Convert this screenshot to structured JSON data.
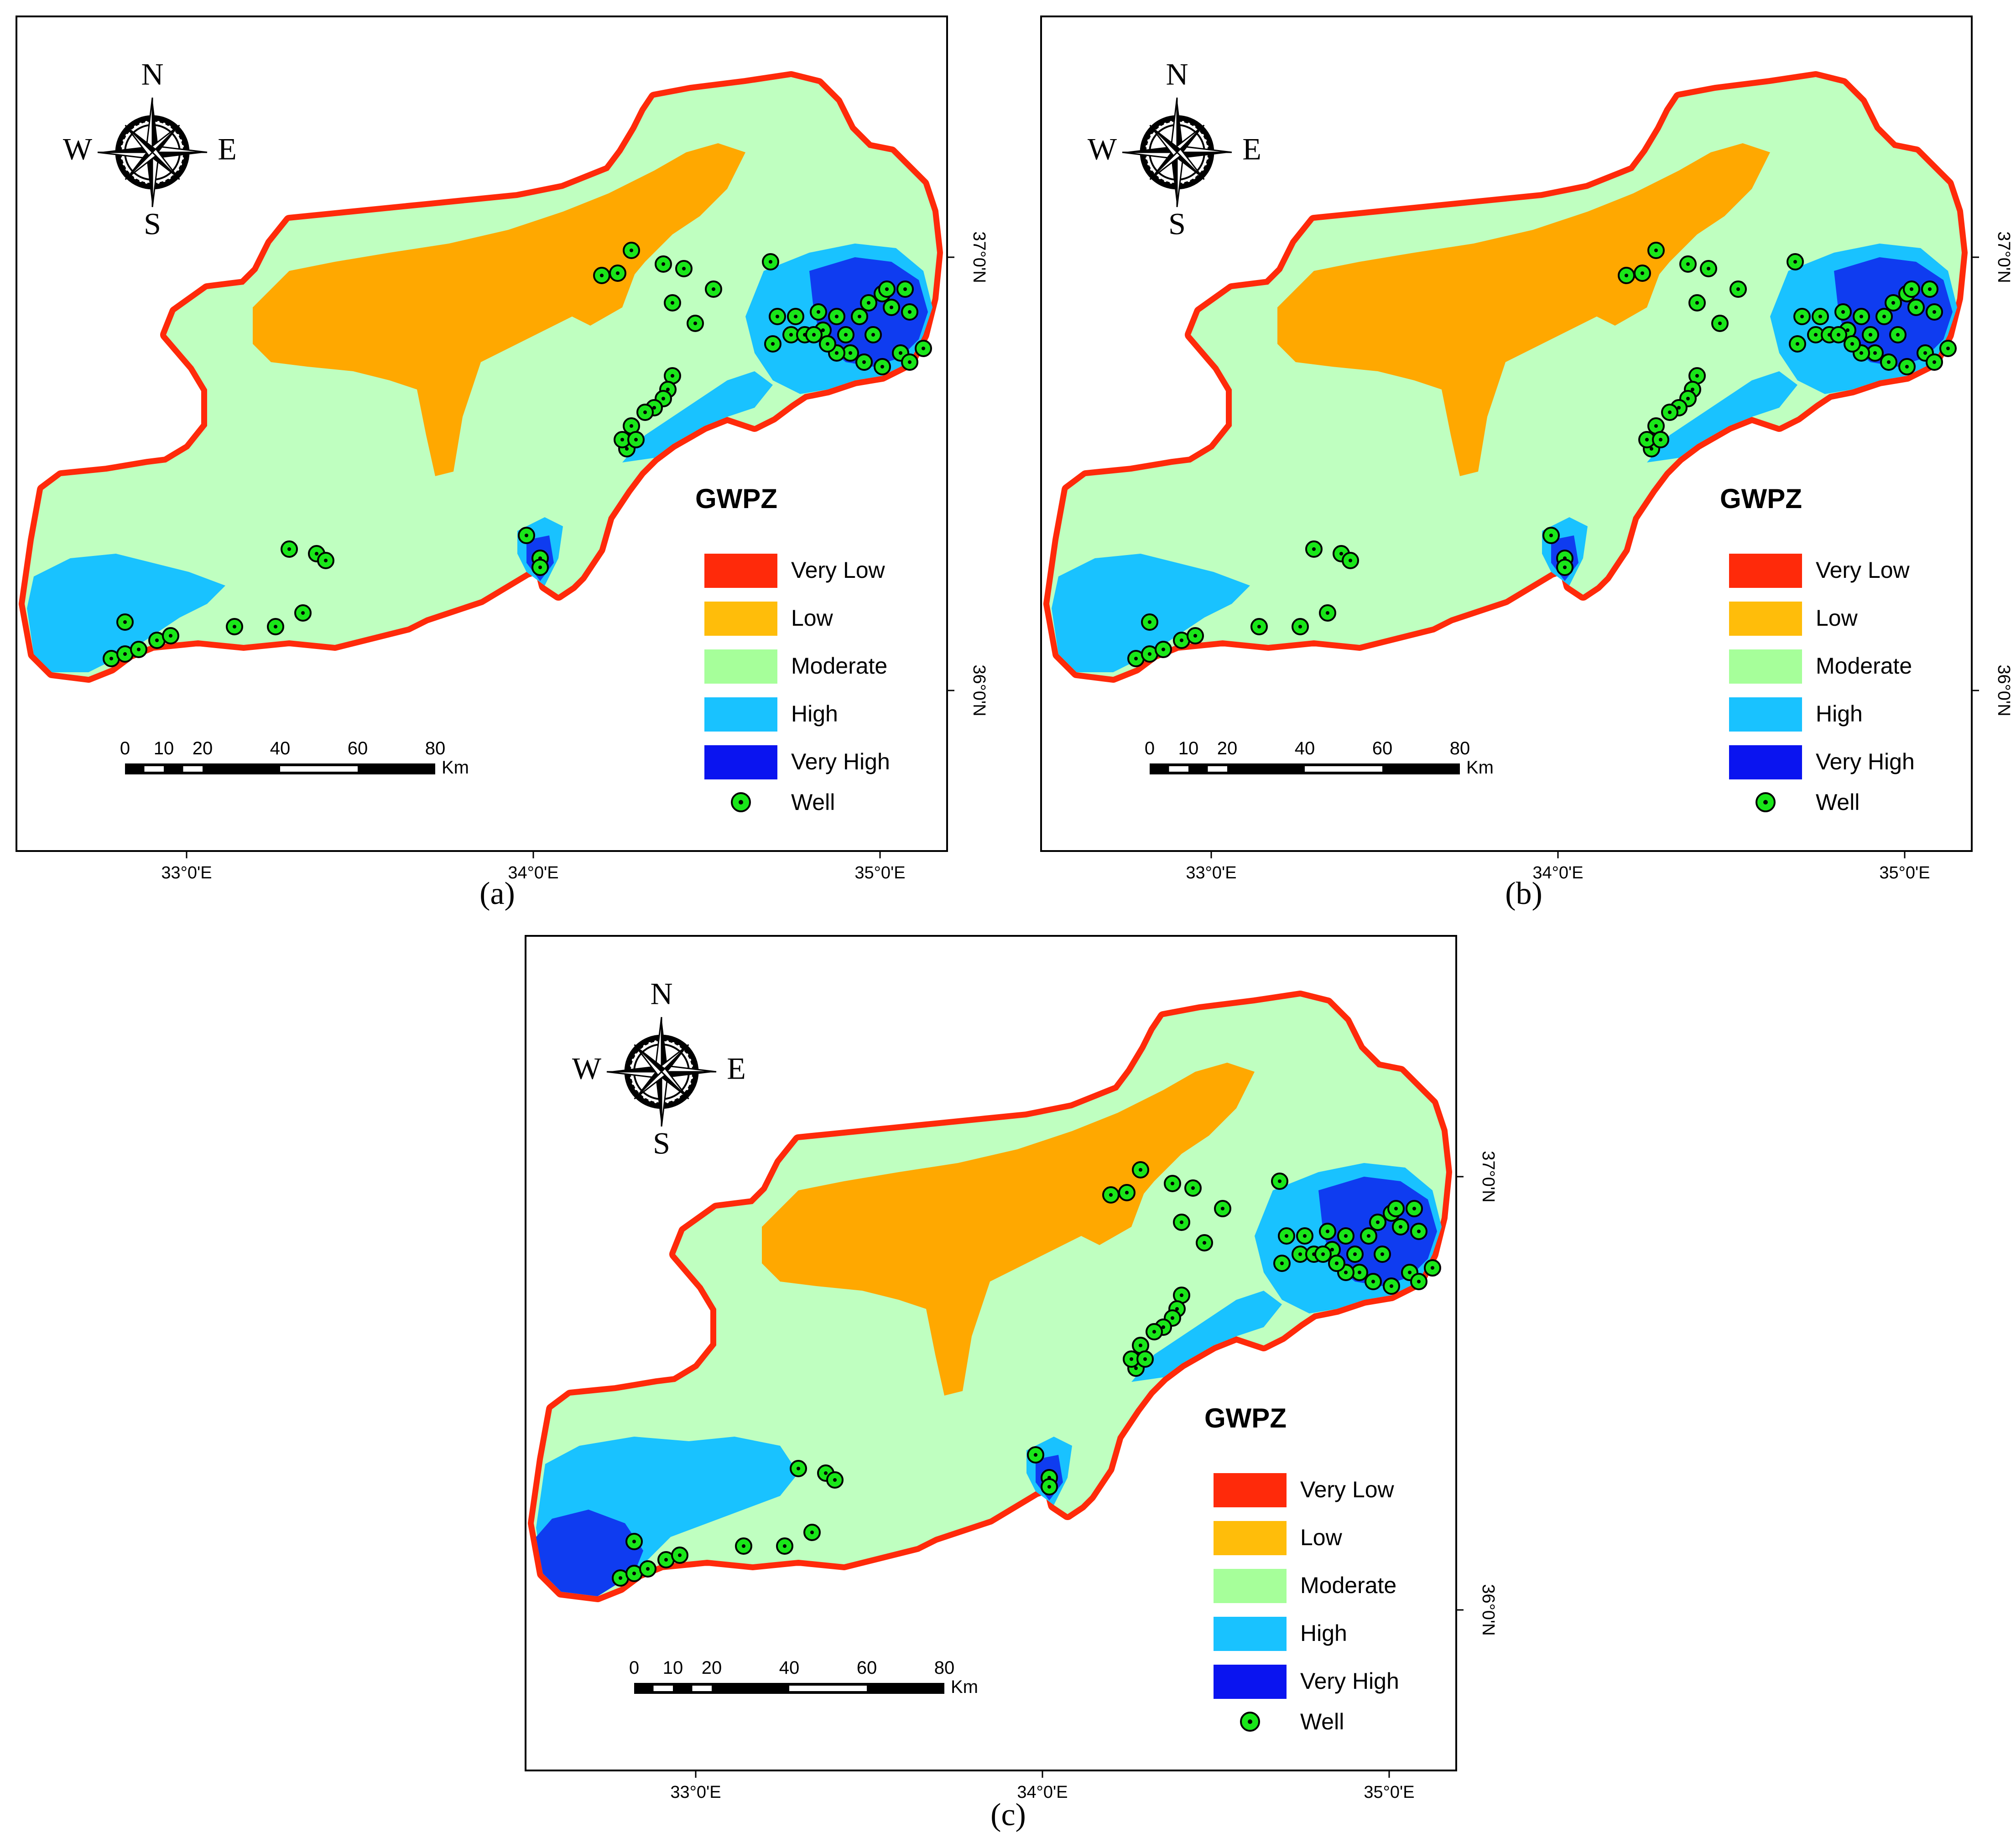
{
  "figure": {
    "panels": [
      {
        "id": "a",
        "caption": "(a)",
        "variant": "a",
        "legend": {
          "title": "GWPZ",
          "classes": [
            {
              "label": "Very Low",
              "color": "#ff2a0a"
            },
            {
              "label": "Low",
              "color": "#ffbd0a"
            },
            {
              "label": "Moderate",
              "color": "#a6ff9a"
            },
            {
              "label": "High",
              "color": "#19c2ff"
            },
            {
              "label": "Very High",
              "color": "#0a14f0"
            }
          ],
          "well_label": "Well"
        },
        "scale_bar": {
          "ticks": [
            "0",
            "10",
            "20",
            "40",
            "60",
            "80"
          ],
          "unit": "Km"
        },
        "compass": {
          "n": "N",
          "s": "S",
          "e": "E",
          "w": "W"
        },
        "x_axis_labels": [
          "33°0'E",
          "34°0'E",
          "35°0'E"
        ],
        "y_axis_labels": [
          "37°0'N",
          "36°0'N"
        ]
      },
      {
        "id": "b",
        "caption": "(b)",
        "variant": "b",
        "legend": {
          "title": "GWPZ",
          "classes": [
            {
              "label": "Very Low",
              "color": "#ff2a0a"
            },
            {
              "label": "Low",
              "color": "#ffbd0a"
            },
            {
              "label": "Moderate",
              "color": "#a6ff9a"
            },
            {
              "label": "High",
              "color": "#19c2ff"
            },
            {
              "label": "Very High",
              "color": "#0a14f0"
            }
          ],
          "well_label": "Well"
        },
        "scale_bar": {
          "ticks": [
            "0",
            "10",
            "20",
            "40",
            "60",
            "80"
          ],
          "unit": "Km"
        },
        "compass": {
          "n": "N",
          "s": "S",
          "e": "E",
          "w": "W"
        },
        "x_axis_labels": [
          "33°0'E",
          "34°0'E",
          "35°0'E"
        ],
        "y_axis_labels": [
          "37°0'N",
          "36°0'N"
        ]
      },
      {
        "id": "c",
        "caption": "(c)",
        "variant": "c",
        "legend": {
          "title": "GWPZ",
          "classes": [
            {
              "label": "Very Low",
              "color": "#ff2a0a"
            },
            {
              "label": "Low",
              "color": "#ffbd0a"
            },
            {
              "label": "Moderate",
              "color": "#a6ff9a"
            },
            {
              "label": "High",
              "color": "#19c2ff"
            },
            {
              "label": "Very High",
              "color": "#0a14f0"
            }
          ],
          "well_label": "Well"
        },
        "scale_bar": {
          "ticks": [
            "0",
            "10",
            "20",
            "40",
            "60",
            "80"
          ],
          "unit": "Km"
        },
        "compass": {
          "n": "N",
          "s": "S",
          "e": "E",
          "w": "W"
        },
        "x_axis_labels": [
          "33°0'E",
          "34°0'E",
          "35°0'E"
        ],
        "y_axis_labels": [
          "37°0'N",
          "36°0'N"
        ]
      }
    ],
    "colors": {
      "moderate_fill": "#bfffc0",
      "low_fill": "#ffa800",
      "very_low_fill": "#ff2a0a",
      "high_fill": "#19c2ff",
      "very_high_fill": "#0f3cf0",
      "well_fill": "#19e619",
      "frame": "#000000"
    }
  }
}
